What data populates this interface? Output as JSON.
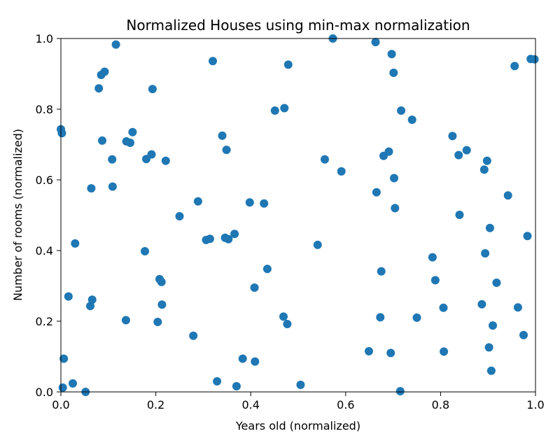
{
  "chart_data": {
    "type": "scatter",
    "title": "Normalized Houses using min-max normalization",
    "xlabel": "Years old (normalized)",
    "ylabel": "Number of rooms (normalized)",
    "xlim": [
      0.0,
      1.0
    ],
    "ylim": [
      0.0,
      1.0
    ],
    "xticks": [
      "0.0",
      "0.2",
      "0.4",
      "0.6",
      "0.8",
      "1.0"
    ],
    "yticks": [
      "0.0",
      "0.2",
      "0.4",
      "0.6",
      "0.8",
      "1.0"
    ],
    "grid": false,
    "marker_color": "#1f77b4",
    "points": [
      [
        0.0,
        0.743
      ],
      [
        0.002,
        0.732
      ],
      [
        0.004,
        0.012
      ],
      [
        0.006,
        0.094
      ],
      [
        0.016,
        0.27
      ],
      [
        0.025,
        0.024
      ],
      [
        0.03,
        0.42
      ],
      [
        0.052,
        0.0
      ],
      [
        0.062,
        0.243
      ],
      [
        0.064,
        0.576
      ],
      [
        0.066,
        0.261
      ],
      [
        0.08,
        0.859
      ],
      [
        0.085,
        0.897
      ],
      [
        0.087,
        0.711
      ],
      [
        0.092,
        0.906
      ],
      [
        0.108,
        0.658
      ],
      [
        0.109,
        0.581
      ],
      [
        0.116,
        0.983
      ],
      [
        0.137,
        0.203
      ],
      [
        0.138,
        0.709
      ],
      [
        0.146,
        0.705
      ],
      [
        0.151,
        0.735
      ],
      [
        0.177,
        0.398
      ],
      [
        0.18,
        0.659
      ],
      [
        0.191,
        0.672
      ],
      [
        0.193,
        0.857
      ],
      [
        0.204,
        0.198
      ],
      [
        0.208,
        0.319
      ],
      [
        0.212,
        0.311
      ],
      [
        0.213,
        0.247
      ],
      [
        0.221,
        0.654
      ],
      [
        0.25,
        0.497
      ],
      [
        0.279,
        0.159
      ],
      [
        0.289,
        0.539
      ],
      [
        0.306,
        0.43
      ],
      [
        0.314,
        0.433
      ],
      [
        0.32,
        0.936
      ],
      [
        0.329,
        0.03
      ],
      [
        0.34,
        0.725
      ],
      [
        0.346,
        0.436
      ],
      [
        0.349,
        0.685
      ],
      [
        0.353,
        0.432
      ],
      [
        0.366,
        0.447
      ],
      [
        0.37,
        0.016
      ],
      [
        0.383,
        0.094
      ],
      [
        0.398,
        0.536
      ],
      [
        0.408,
        0.295
      ],
      [
        0.409,
        0.086
      ],
      [
        0.428,
        0.533
      ],
      [
        0.435,
        0.348
      ],
      [
        0.451,
        0.796
      ],
      [
        0.469,
        0.213
      ],
      [
        0.471,
        0.803
      ],
      [
        0.477,
        0.192
      ],
      [
        0.479,
        0.926
      ],
      [
        0.505,
        0.02
      ],
      [
        0.541,
        0.416
      ],
      [
        0.556,
        0.658
      ],
      [
        0.573,
        1.0
      ],
      [
        0.591,
        0.624
      ],
      [
        0.649,
        0.115
      ],
      [
        0.663,
        0.99
      ],
      [
        0.665,
        0.565
      ],
      [
        0.673,
        0.211
      ],
      [
        0.675,
        0.341
      ],
      [
        0.68,
        0.668
      ],
      [
        0.691,
        0.68
      ],
      [
        0.695,
        0.11
      ],
      [
        0.697,
        0.956
      ],
      [
        0.701,
        0.903
      ],
      [
        0.702,
        0.605
      ],
      [
        0.704,
        0.52
      ],
      [
        0.715,
        0.002
      ],
      [
        0.717,
        0.796
      ],
      [
        0.74,
        0.77
      ],
      [
        0.75,
        0.21
      ],
      [
        0.783,
        0.381
      ],
      [
        0.789,
        0.316
      ],
      [
        0.806,
        0.238
      ],
      [
        0.807,
        0.114
      ],
      [
        0.825,
        0.724
      ],
      [
        0.838,
        0.67
      ],
      [
        0.84,
        0.501
      ],
      [
        0.855,
        0.684
      ],
      [
        0.887,
        0.248
      ],
      [
        0.892,
        0.629
      ],
      [
        0.894,
        0.392
      ],
      [
        0.898,
        0.654
      ],
      [
        0.902,
        0.126
      ],
      [
        0.904,
        0.464
      ],
      [
        0.907,
        0.06
      ],
      [
        0.91,
        0.188
      ],
      [
        0.918,
        0.309
      ],
      [
        0.942,
        0.556
      ],
      [
        0.956,
        0.922
      ],
      [
        0.963,
        0.239
      ],
      [
        0.975,
        0.161
      ],
      [
        0.983,
        0.441
      ],
      [
        0.99,
        0.942
      ],
      [
        0.998,
        0.941
      ]
    ]
  }
}
